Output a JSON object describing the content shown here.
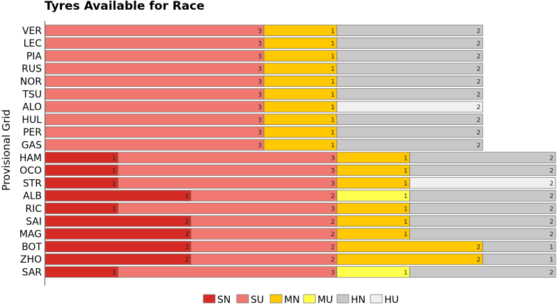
{
  "chart_data": {
    "type": "bar",
    "orientation": "horizontal",
    "stacked": true,
    "title": "Tyres Available for Race",
    "xlabel": "",
    "ylabel": "Provisional Grid",
    "legend_position": "bottom",
    "grid": false,
    "categories": [
      "VER",
      "LEC",
      "PIA",
      "RUS",
      "NOR",
      "TSU",
      "ALO",
      "HUL",
      "PER",
      "GAS",
      "HAM",
      "OCO",
      "STR",
      "ALB",
      "RIC",
      "SAI",
      "MAG",
      "BOT",
      "ZHO",
      "SAR"
    ],
    "series": [
      {
        "name": "SN",
        "color": "#d62b24",
        "values": [
          0,
          0,
          0,
          0,
          0,
          0,
          0,
          0,
          0,
          0,
          1,
          1,
          1,
          2,
          1,
          2,
          2,
          2,
          2,
          1
        ]
      },
      {
        "name": "SU",
        "color": "#f07870",
        "values": [
          3,
          3,
          3,
          3,
          3,
          3,
          3,
          3,
          3,
          3,
          3,
          3,
          3,
          2,
          3,
          2,
          2,
          2,
          2,
          3
        ]
      },
      {
        "name": "MN",
        "color": "#ffc800",
        "values": [
          1,
          1,
          1,
          1,
          1,
          1,
          1,
          1,
          1,
          1,
          1,
          1,
          1,
          0,
          1,
          1,
          1,
          2,
          2,
          0
        ]
      },
      {
        "name": "MU",
        "color": "#ffff4d",
        "values": [
          0,
          0,
          0,
          0,
          0,
          0,
          0,
          0,
          0,
          0,
          0,
          0,
          0,
          1,
          0,
          0,
          0,
          0,
          0,
          1
        ]
      },
      {
        "name": "HN",
        "color": "#c8c8c8",
        "values": [
          2,
          2,
          2,
          2,
          2,
          2,
          0,
          2,
          2,
          2,
          2,
          2,
          0,
          2,
          2,
          2,
          2,
          1,
          1,
          2
        ]
      },
      {
        "name": "HU",
        "color": "#f0f0f0",
        "values": [
          0,
          0,
          0,
          0,
          0,
          0,
          2,
          0,
          0,
          0,
          0,
          0,
          2,
          0,
          0,
          0,
          0,
          0,
          0,
          0
        ]
      }
    ],
    "xlim": [
      0,
      7
    ]
  }
}
